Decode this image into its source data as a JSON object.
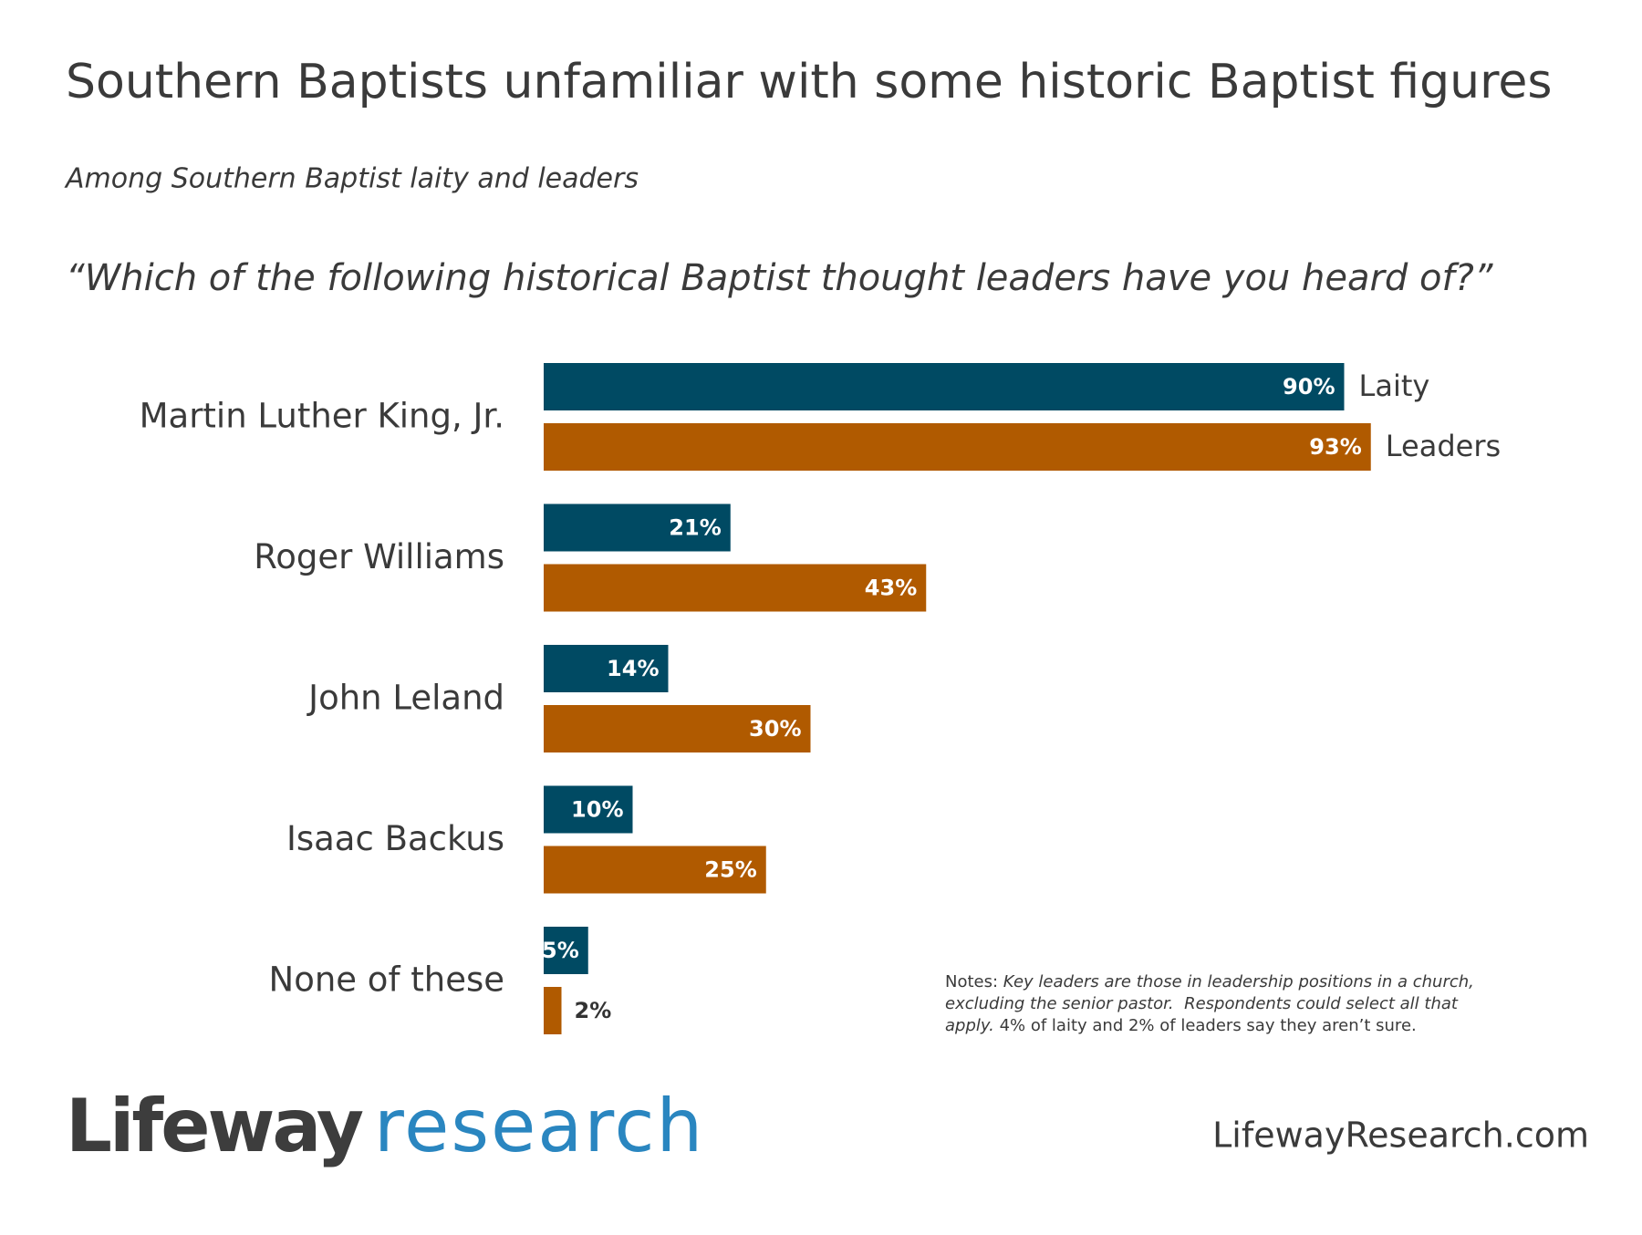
{
  "chart_data": {
    "type": "bar",
    "orientation": "horizontal",
    "title": "Southern Baptists unfamiliar with some historic Baptist figures",
    "subtitle": "Among Southern Baptist laity and leaders",
    "question": "“Which of the following historical Baptist thought leaders have you heard of?”",
    "categories": [
      "Martin Luther King, Jr.",
      "Roger Williams",
      "John Leland",
      "Isaac Backus",
      "None of these"
    ],
    "series": [
      {
        "name": "Laity",
        "color": "#004a63",
        "values": [
          90,
          21,
          14,
          10,
          5
        ],
        "value_labels": [
          "90%",
          "21%",
          "14%",
          "10%",
          "5%"
        ]
      },
      {
        "name": "Leaders",
        "color": "#b05a00",
        "values": [
          93,
          43,
          30,
          25,
          2
        ],
        "value_labels": [
          "93%",
          "43%",
          "30%",
          "25%",
          "2%"
        ]
      }
    ],
    "notes": [
      [
        {
          "text": "Notes: ",
          "style": "normal"
        },
        {
          "text": "Key leaders are those in leadership positions in a church,",
          "style": "italic"
        }
      ],
      [
        {
          "text": "excluding the senior pastor.  Respondents could select all that",
          "style": "italic"
        }
      ],
      [
        {
          "text": "apply.",
          "style": "italic"
        },
        {
          "text": " 4% of laity and 2% of leaders say they aren’t sure.",
          "style": "normal"
        }
      ]
    ],
    "logo": {
      "brand": "Lifeway",
      "word": "research"
    },
    "url": "LifewayResearch.com"
  }
}
